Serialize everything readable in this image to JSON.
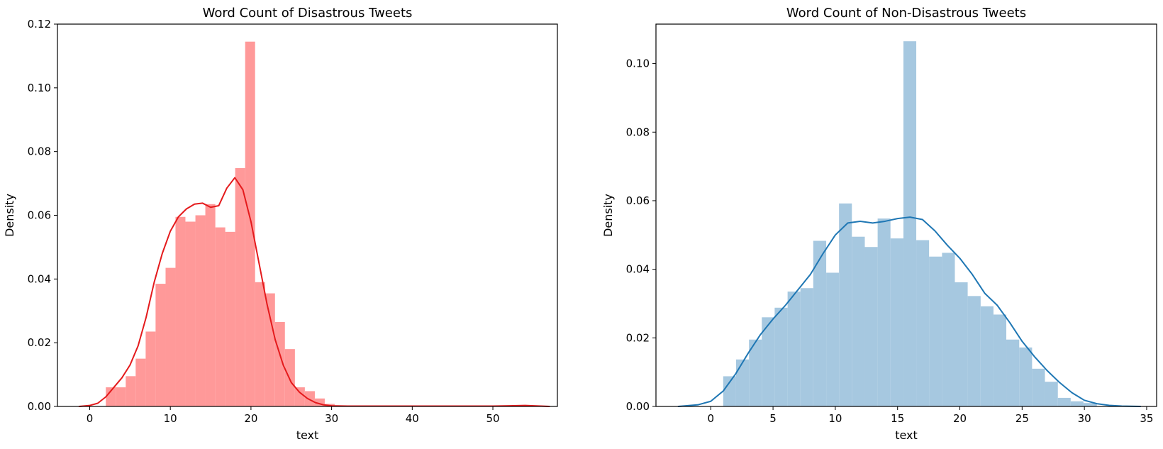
{
  "chart_data": [
    {
      "type": "histogram+kde",
      "title": "Word Count of Disastrous Tweets",
      "xlabel": "text",
      "ylabel": "Density",
      "xlim": [
        -4,
        58
      ],
      "ylim": [
        0,
        0.12
      ],
      "xticks": [
        0,
        10,
        20,
        30,
        40,
        50
      ],
      "yticks": [
        0.0,
        0.02,
        0.04,
        0.06,
        0.08,
        0.1,
        0.12
      ],
      "ytick_labels": [
        "0.00",
        "0.02",
        "0.04",
        "0.06",
        "0.08",
        "0.10",
        "0.12"
      ],
      "bar_color": "#ff9999",
      "line_color": "#e41a1c",
      "bins": [
        {
          "x0": 2.0,
          "x1": 3.23,
          "density": 0.006
        },
        {
          "x0": 3.23,
          "x1": 4.47,
          "density": 0.006
        },
        {
          "x0": 4.47,
          "x1": 5.7,
          "density": 0.0095
        },
        {
          "x0": 5.7,
          "x1": 6.94,
          "density": 0.015
        },
        {
          "x0": 6.94,
          "x1": 8.17,
          "density": 0.0235
        },
        {
          "x0": 8.17,
          "x1": 9.41,
          "density": 0.0385
        },
        {
          "x0": 9.41,
          "x1": 10.64,
          "density": 0.0435
        },
        {
          "x0": 10.64,
          "x1": 11.87,
          "density": 0.0595
        },
        {
          "x0": 11.87,
          "x1": 13.11,
          "density": 0.058
        },
        {
          "x0": 13.11,
          "x1": 14.34,
          "density": 0.06
        },
        {
          "x0": 14.34,
          "x1": 15.58,
          "density": 0.0635
        },
        {
          "x0": 15.58,
          "x1": 16.81,
          "density": 0.0562
        },
        {
          "x0": 16.81,
          "x1": 18.04,
          "density": 0.0548
        },
        {
          "x0": 18.04,
          "x1": 19.28,
          "density": 0.0748
        },
        {
          "x0": 19.28,
          "x1": 20.51,
          "density": 0.1145
        },
        {
          "x0": 20.51,
          "x1": 21.75,
          "density": 0.039
        },
        {
          "x0": 21.75,
          "x1": 22.98,
          "density": 0.0355
        },
        {
          "x0": 22.98,
          "x1": 24.21,
          "density": 0.0265
        },
        {
          "x0": 24.21,
          "x1": 25.45,
          "density": 0.018
        },
        {
          "x0": 25.45,
          "x1": 26.68,
          "density": 0.006
        },
        {
          "x0": 26.68,
          "x1": 27.92,
          "density": 0.0048
        },
        {
          "x0": 27.92,
          "x1": 29.15,
          "density": 0.0025
        },
        {
          "x0": 29.15,
          "x1": 30.38,
          "density": 0.0008
        },
        {
          "x0": 30.38,
          "x1": 31.62,
          "density": 0.0003
        },
        {
          "x0": 31.62,
          "x1": 32.85,
          "density": 0.0002
        },
        {
          "x0": 52.5,
          "x1": 53.7,
          "density": 0.0003
        },
        {
          "x0": 53.7,
          "x1": 54.9,
          "density": 0.0003
        },
        {
          "x0": 54.9,
          "x1": 56.1,
          "density": 0.0002
        }
      ],
      "kde": [
        {
          "x": -1.3,
          "y": 0.0
        },
        {
          "x": 0.0,
          "y": 0.0003
        },
        {
          "x": 1.0,
          "y": 0.001
        },
        {
          "x": 2.0,
          "y": 0.003
        },
        {
          "x": 3.0,
          "y": 0.006
        },
        {
          "x": 4.0,
          "y": 0.009
        },
        {
          "x": 5.0,
          "y": 0.013
        },
        {
          "x": 6.0,
          "y": 0.019
        },
        {
          "x": 7.0,
          "y": 0.028
        },
        {
          "x": 8.0,
          "y": 0.039
        },
        {
          "x": 9.0,
          "y": 0.048
        },
        {
          "x": 10.0,
          "y": 0.055
        },
        {
          "x": 11.0,
          "y": 0.0595
        },
        {
          "x": 12.0,
          "y": 0.062
        },
        {
          "x": 13.0,
          "y": 0.0635
        },
        {
          "x": 14.0,
          "y": 0.0638
        },
        {
          "x": 15.0,
          "y": 0.0625
        },
        {
          "x": 16.0,
          "y": 0.063
        },
        {
          "x": 17.0,
          "y": 0.0685
        },
        {
          "x": 18.0,
          "y": 0.0718
        },
        {
          "x": 19.0,
          "y": 0.068
        },
        {
          "x": 20.0,
          "y": 0.058
        },
        {
          "x": 21.0,
          "y": 0.045
        },
        {
          "x": 22.0,
          "y": 0.032
        },
        {
          "x": 23.0,
          "y": 0.021
        },
        {
          "x": 24.0,
          "y": 0.013
        },
        {
          "x": 25.0,
          "y": 0.0075
        },
        {
          "x": 26.0,
          "y": 0.0045
        },
        {
          "x": 27.0,
          "y": 0.0025
        },
        {
          "x": 28.0,
          "y": 0.0012
        },
        {
          "x": 29.0,
          "y": 0.0005
        },
        {
          "x": 30.0,
          "y": 0.0002
        },
        {
          "x": 32.0,
          "y": 0.0001
        },
        {
          "x": 40.0,
          "y": 0.0001
        },
        {
          "x": 50.0,
          "y": 0.0001
        },
        {
          "x": 52.0,
          "y": 0.0002
        },
        {
          "x": 54.0,
          "y": 0.0003
        },
        {
          "x": 56.0,
          "y": 0.0001
        },
        {
          "x": 57.0,
          "y": 0.0
        }
      ]
    },
    {
      "type": "histogram+kde",
      "title": "Word Count of Non-Disastrous Tweets",
      "xlabel": "text",
      "ylabel": "Density",
      "xlim": [
        -4.4,
        35.8
      ],
      "ylim": [
        0,
        0.1115
      ],
      "xticks": [
        0,
        5,
        10,
        15,
        20,
        25,
        30,
        35
      ],
      "yticks": [
        0.0,
        0.02,
        0.04,
        0.06,
        0.08,
        0.1
      ],
      "ytick_labels": [
        "0.00",
        "0.02",
        "0.04",
        "0.06",
        "0.08",
        "0.10"
      ],
      "bar_color": "#a6c8e0",
      "line_color": "#1f77b4",
      "bins": [
        {
          "x0": 1.0,
          "x1": 2.03,
          "density": 0.0088
        },
        {
          "x0": 2.03,
          "x1": 3.07,
          "density": 0.0137
        },
        {
          "x0": 3.07,
          "x1": 4.1,
          "density": 0.0195
        },
        {
          "x0": 4.1,
          "x1": 5.13,
          "density": 0.026
        },
        {
          "x0": 5.13,
          "x1": 6.17,
          "density": 0.0288
        },
        {
          "x0": 6.17,
          "x1": 7.2,
          "density": 0.0335
        },
        {
          "x0": 7.2,
          "x1": 8.23,
          "density": 0.0345
        },
        {
          "x0": 8.23,
          "x1": 9.27,
          "density": 0.0483
        },
        {
          "x0": 9.27,
          "x1": 10.3,
          "density": 0.039
        },
        {
          "x0": 10.3,
          "x1": 11.33,
          "density": 0.0592
        },
        {
          "x0": 11.33,
          "x1": 12.37,
          "density": 0.0495
        },
        {
          "x0": 12.37,
          "x1": 13.4,
          "density": 0.0465
        },
        {
          "x0": 13.4,
          "x1": 14.43,
          "density": 0.0548
        },
        {
          "x0": 14.43,
          "x1": 15.47,
          "density": 0.049
        },
        {
          "x0": 15.47,
          "x1": 16.5,
          "density": 0.1065
        },
        {
          "x0": 16.5,
          "x1": 17.53,
          "density": 0.0485
        },
        {
          "x0": 17.53,
          "x1": 18.57,
          "density": 0.0437
        },
        {
          "x0": 18.57,
          "x1": 19.6,
          "density": 0.0448
        },
        {
          "x0": 19.6,
          "x1": 20.63,
          "density": 0.0362
        },
        {
          "x0": 20.63,
          "x1": 21.67,
          "density": 0.0322
        },
        {
          "x0": 21.67,
          "x1": 22.7,
          "density": 0.0292
        },
        {
          "x0": 22.7,
          "x1": 23.73,
          "density": 0.0268
        },
        {
          "x0": 23.73,
          "x1": 24.77,
          "density": 0.0195
        },
        {
          "x0": 24.77,
          "x1": 25.8,
          "density": 0.0172
        },
        {
          "x0": 25.8,
          "x1": 26.83,
          "density": 0.011
        },
        {
          "x0": 26.83,
          "x1": 27.87,
          "density": 0.0072
        },
        {
          "x0": 27.87,
          "x1": 28.9,
          "density": 0.0025
        },
        {
          "x0": 28.9,
          "x1": 29.93,
          "density": 0.0015
        },
        {
          "x0": 29.93,
          "x1": 31.0,
          "density": 0.001
        }
      ],
      "kde": [
        {
          "x": -2.6,
          "y": 0.0
        },
        {
          "x": -1.0,
          "y": 0.0005
        },
        {
          "x": 0.0,
          "y": 0.0015
        },
        {
          "x": 1.0,
          "y": 0.0045
        },
        {
          "x": 2.0,
          "y": 0.0095
        },
        {
          "x": 3.0,
          "y": 0.0155
        },
        {
          "x": 4.0,
          "y": 0.021
        },
        {
          "x": 5.0,
          "y": 0.0255
        },
        {
          "x": 6.0,
          "y": 0.0295
        },
        {
          "x": 7.0,
          "y": 0.034
        },
        {
          "x": 8.0,
          "y": 0.0385
        },
        {
          "x": 9.0,
          "y": 0.0445
        },
        {
          "x": 10.0,
          "y": 0.05
        },
        {
          "x": 11.0,
          "y": 0.0535
        },
        {
          "x": 12.0,
          "y": 0.054
        },
        {
          "x": 13.0,
          "y": 0.0535
        },
        {
          "x": 14.0,
          "y": 0.054
        },
        {
          "x": 15.0,
          "y": 0.0548
        },
        {
          "x": 16.0,
          "y": 0.0552
        },
        {
          "x": 17.0,
          "y": 0.0545
        },
        {
          "x": 18.0,
          "y": 0.0512
        },
        {
          "x": 19.0,
          "y": 0.047
        },
        {
          "x": 20.0,
          "y": 0.0432
        },
        {
          "x": 21.0,
          "y": 0.0385
        },
        {
          "x": 22.0,
          "y": 0.033
        },
        {
          "x": 23.0,
          "y": 0.0295
        },
        {
          "x": 24.0,
          "y": 0.0245
        },
        {
          "x": 25.0,
          "y": 0.019
        },
        {
          "x": 26.0,
          "y": 0.0145
        },
        {
          "x": 27.0,
          "y": 0.0105
        },
        {
          "x": 28.0,
          "y": 0.007
        },
        {
          "x": 29.0,
          "y": 0.004
        },
        {
          "x": 30.0,
          "y": 0.0018
        },
        {
          "x": 31.0,
          "y": 0.0008
        },
        {
          "x": 32.0,
          "y": 0.0003
        },
        {
          "x": 33.0,
          "y": 0.0001
        },
        {
          "x": 34.5,
          "y": 0.0
        }
      ]
    }
  ]
}
